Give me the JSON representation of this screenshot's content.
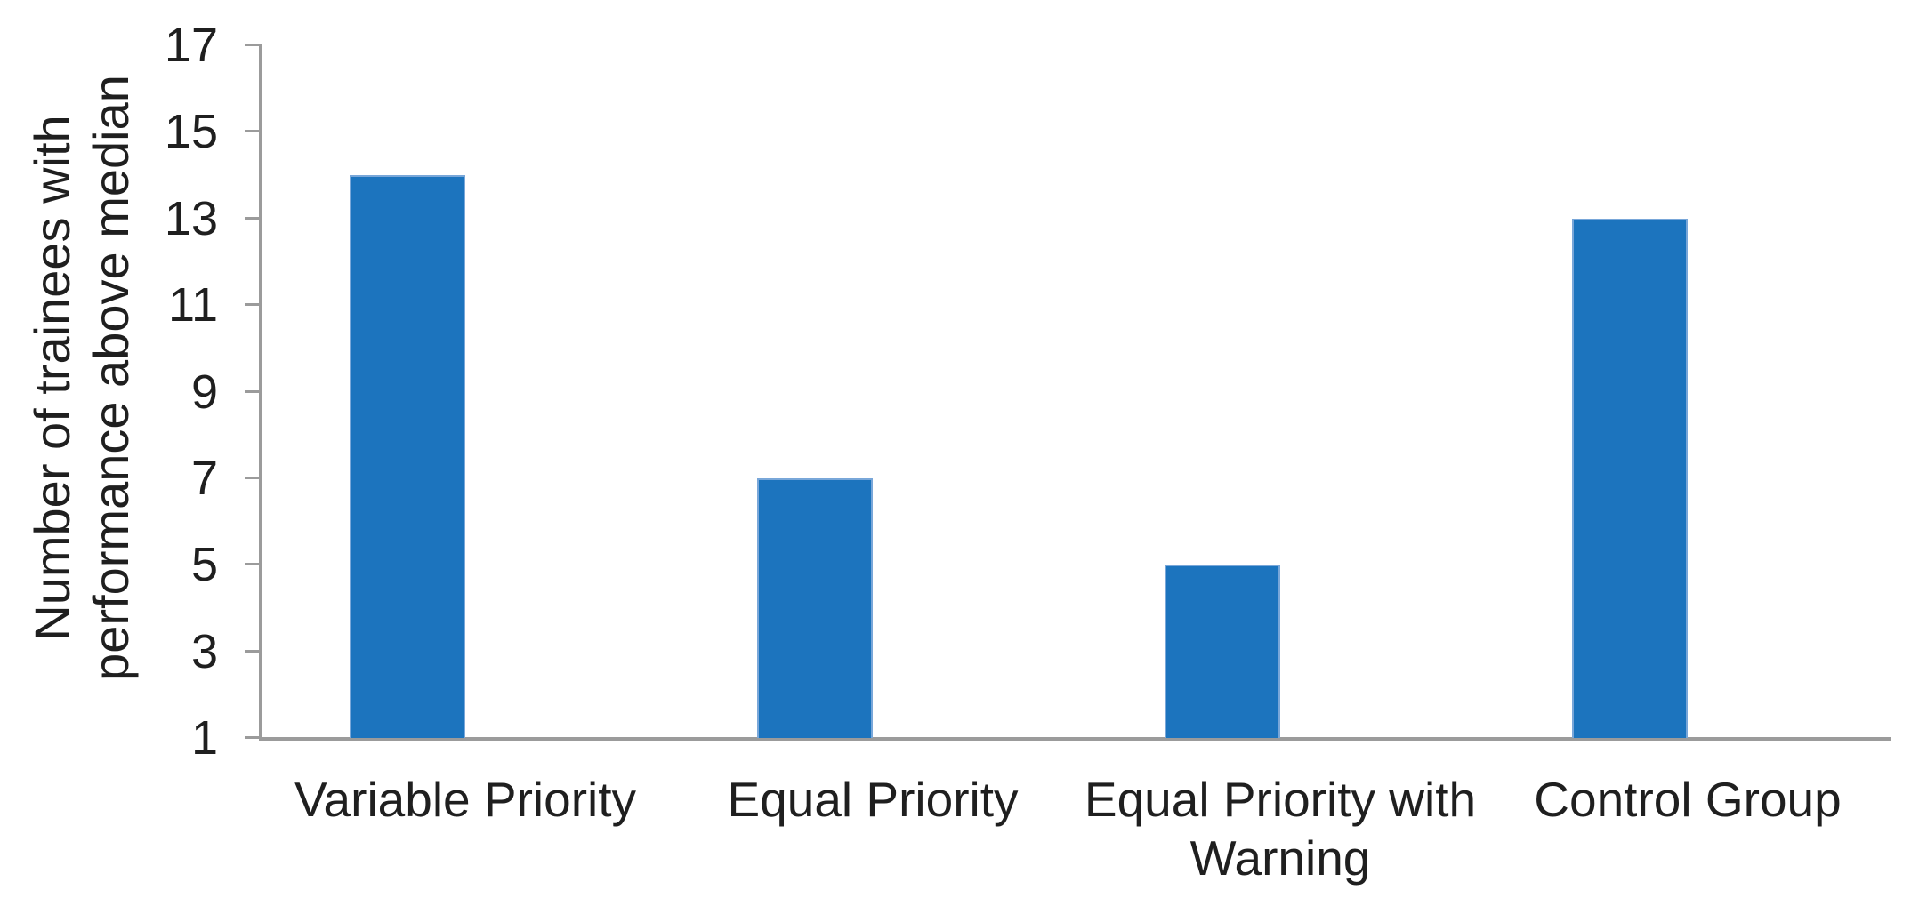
{
  "chart_data": {
    "type": "bar",
    "categories": [
      "Variable Priority",
      "Equal Priority",
      "Equal Priority with\nWarning",
      "Control Group"
    ],
    "values": [
      14,
      7,
      5,
      13
    ],
    "ylabel": "Number of trainees with performance above median",
    "ylabel_lines": [
      "Number of trainees with",
      "performance above median"
    ],
    "yticks": [
      1,
      3,
      5,
      7,
      9,
      11,
      13,
      15,
      17
    ],
    "ylim": [
      1,
      17
    ],
    "xlabel": "",
    "grid": false,
    "legend_position": "none",
    "bar_color": "#1C74BE",
    "axis_color": "#9B9B9B",
    "text_color": "#1F1F1F"
  }
}
